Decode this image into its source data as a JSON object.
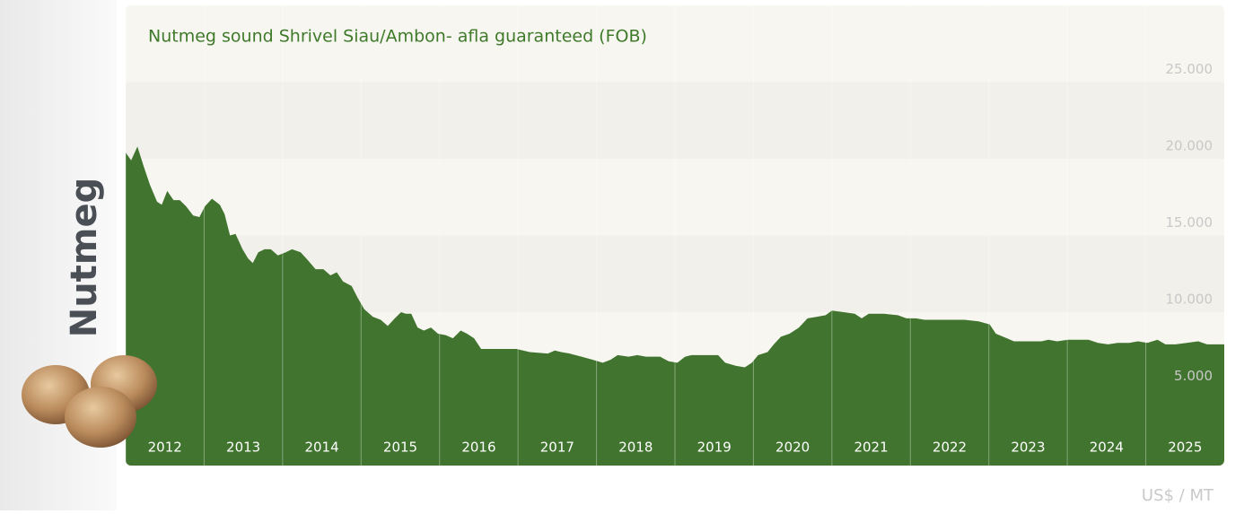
{
  "chart_data": {
    "type": "area",
    "title": "Nutmeg sound Shrivel Siau/Ambon- afla guaranteed (FOB)",
    "side_label": "Nutmeg",
    "unit": "US$ / MT",
    "color": "#41752f",
    "x": [
      2012.0,
      2012.07,
      2012.15,
      2012.23,
      2012.31,
      2012.4,
      2012.46,
      2012.53,
      2012.61,
      2012.69,
      2012.77,
      2012.86,
      2012.94,
      2013.01,
      2013.1,
      2013.2,
      2013.26,
      2013.33,
      2013.4,
      2013.49,
      2013.56,
      2013.62,
      2013.69,
      2013.77,
      2013.85,
      2013.94,
      2014.04,
      2014.12,
      2014.23,
      2014.32,
      2014.42,
      2014.52,
      2014.61,
      2014.69,
      2014.77,
      2014.88,
      2014.95,
      2015.04,
      2015.15,
      2015.25,
      2015.34,
      2015.43,
      2015.51,
      2015.57,
      2015.64,
      2015.72,
      2015.8,
      2015.89,
      2015.98,
      2016.08,
      2016.17,
      2016.27,
      2016.35,
      2016.44,
      2016.53,
      2016.8,
      2016.98,
      2017.15,
      2017.38,
      2017.47,
      2017.55,
      2017.66,
      2017.81,
      2017.95,
      2018.08,
      2018.18,
      2018.27,
      2018.41,
      2018.52,
      2018.63,
      2018.81,
      2018.92,
      2019.03,
      2019.13,
      2019.21,
      2019.38,
      2019.55,
      2019.64,
      2019.78,
      2019.89,
      2019.98,
      2020.06,
      2020.18,
      2020.26,
      2020.35,
      2020.46,
      2020.58,
      2020.69,
      2020.81,
      2020.92,
      2021.0,
      2021.15,
      2021.29,
      2021.38,
      2021.47,
      2021.55,
      2021.66,
      2021.84,
      2021.95,
      2022.07,
      2022.18,
      2022.35,
      2022.47,
      2022.58,
      2022.69,
      2022.87,
      2023.01,
      2023.09,
      2023.23,
      2023.32,
      2023.44,
      2023.55,
      2023.67,
      2023.76,
      2023.87,
      2024.01,
      2024.16,
      2024.27,
      2024.39,
      2024.52,
      2024.64,
      2024.79,
      2024.9,
      2025.02,
      2025.15,
      2025.25,
      2025.38,
      2025.52,
      2025.67,
      2025.78,
      2025.86,
      2026.0
    ],
    "values": [
      20400,
      19900,
      20800,
      19500,
      18300,
      17200,
      17000,
      17900,
      17300,
      17300,
      16900,
      16300,
      16200,
      16900,
      17400,
      17000,
      16400,
      15000,
      15100,
      14100,
      13500,
      13200,
      13900,
      14100,
      14100,
      13700,
      13900,
      14100,
      13900,
      13400,
      12800,
      12800,
      12400,
      12600,
      12000,
      11700,
      11000,
      10200,
      9700,
      9500,
      9100,
      9600,
      10000,
      9900,
      9900,
      9000,
      8800,
      9000,
      8600,
      8500,
      8300,
      8800,
      8600,
      8300,
      7600,
      7600,
      7600,
      7400,
      7300,
      7500,
      7400,
      7300,
      7100,
      6900,
      6700,
      6900,
      7200,
      7100,
      7200,
      7100,
      7100,
      6800,
      6700,
      7100,
      7200,
      7200,
      7200,
      6700,
      6500,
      6400,
      6700,
      7200,
      7400,
      7900,
      8400,
      8600,
      9000,
      9600,
      9700,
      9800,
      10100,
      10000,
      9900,
      9600,
      9900,
      9900,
      9900,
      9800,
      9600,
      9600,
      9500,
      9500,
      9500,
      9500,
      9500,
      9400,
      9200,
      8600,
      8300,
      8100,
      8100,
      8100,
      8100,
      8200,
      8100,
      8200,
      8200,
      8200,
      8000,
      7900,
      8000,
      8000,
      8100,
      8000,
      8200,
      7900,
      7900,
      8000,
      8100,
      7900,
      7900,
      7900
    ],
    "xlim": [
      2012,
      2026
    ],
    "xticks": [
      2012,
      2013,
      2014,
      2015,
      2016,
      2017,
      2018,
      2019,
      2020,
      2021,
      2022,
      2023,
      2024,
      2025
    ],
    "ylim": [
      0,
      30000
    ],
    "yticks": [
      {
        "value": 5000,
        "label": "5.000"
      },
      {
        "value": 10000,
        "label": "10.000"
      },
      {
        "value": 15000,
        "label": "15.000"
      },
      {
        "value": 20000,
        "label": "20.000"
      },
      {
        "value": 25000,
        "label": "25.000"
      }
    ],
    "grid": true
  }
}
